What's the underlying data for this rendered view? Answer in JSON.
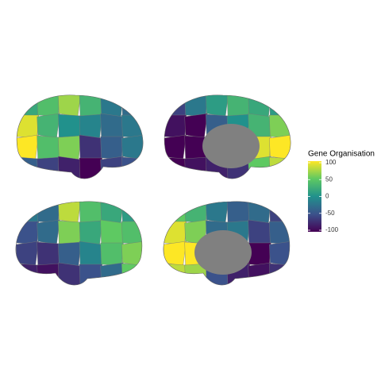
{
  "chart_data": {
    "type": "brain",
    "legend_title": "Gene Organisation",
    "colorscale": [
      "#440154",
      "#3b528b",
      "#21918c",
      "#5ec962",
      "#fde725"
    ],
    "missing_color": "#808080",
    "lim": [
      -100,
      100
    ],
    "ticks": [
      100,
      50,
      0,
      -50,
      -100
    ],
    "views": [
      {
        "values": [
          20,
          40,
          70,
          30,
          -20,
          -30,
          90,
          30,
          0,
          -10,
          -30,
          -20,
          100,
          40,
          60,
          -70,
          -40,
          -20,
          -40,
          -60,
          -80,
          -100,
          -60,
          -50
        ]
      },
      {
        "values": [
          -60,
          -20,
          10,
          30,
          20,
          10,
          -90,
          -100,
          -40,
          0,
          30,
          60,
          -100,
          -100,
          -40,
          -20,
          90,
          100,
          -100,
          -90,
          -80,
          -70,
          50,
          80
        ]
      },
      {
        "values": [
          -20,
          -30,
          80,
          40,
          20,
          10,
          -50,
          -30,
          60,
          20,
          50,
          40,
          -60,
          -70,
          -40,
          -10,
          40,
          60,
          -80,
          -90,
          -70,
          -50,
          -30,
          50
        ]
      },
      {
        "values": [
          50,
          30,
          -20,
          -40,
          -30,
          -60,
          90,
          60,
          -30,
          -20,
          -60,
          -40,
          100,
          100,
          -60,
          -100,
          -100,
          -50,
          80,
          70,
          -50,
          -80,
          -90,
          -70
        ]
      }
    ]
  }
}
